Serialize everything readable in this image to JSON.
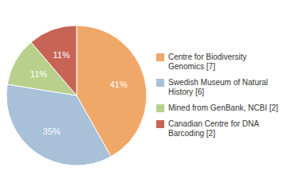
{
  "chart_data": {
    "type": "pie",
    "categories": [
      "Centre for Biodiversity\nGenomics [7]",
      "Swedish Museum of Natural\nHistory [6]",
      "Mined from GenBank, NCBI [2]",
      "Canadian Centre for DNA\nBarcoding [2]"
    ],
    "values": [
      41,
      35,
      11,
      11
    ],
    "value_labels": [
      "41%",
      "35%",
      "11%",
      "11%"
    ],
    "colors": [
      "#F0A868",
      "#A8C0D8",
      "#B8D08C",
      "#C86455"
    ],
    "data_labels": true,
    "legend": "right"
  }
}
